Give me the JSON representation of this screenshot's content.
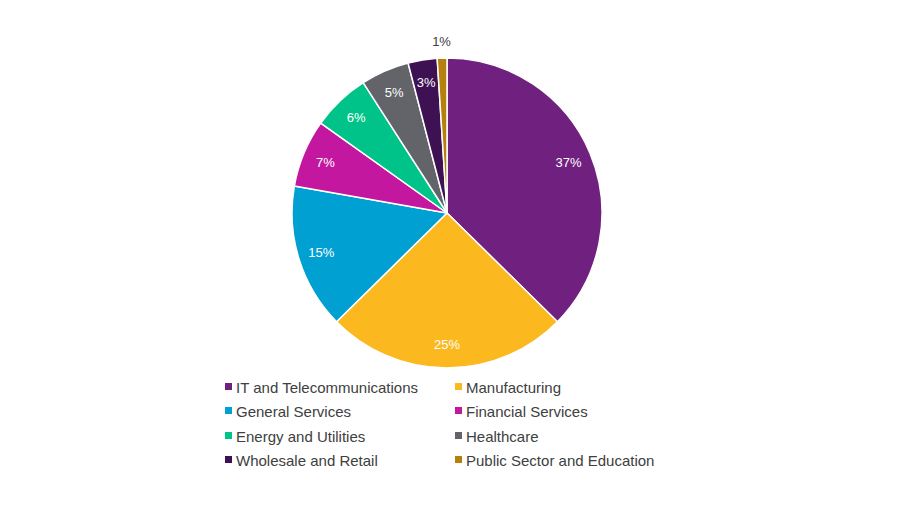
{
  "chart_data": {
    "type": "pie",
    "categories": [
      "IT and Telecommunications",
      "Manufacturing",
      "General Services",
      "Financial Services",
      "Energy and Utilities",
      "Healthcare",
      "Wholesale and Retail",
      "Public Sector and Education"
    ],
    "values": [
      37,
      25,
      15,
      7,
      6,
      5,
      3,
      1
    ],
    "value_labels": [
      "37%",
      "25%",
      "15%",
      "7%",
      "6%",
      "5%",
      "3%",
      "1%"
    ],
    "colors": [
      "#70207e",
      "#fbb81f",
      "#00a0d2",
      "#c3179f",
      "#00c389",
      "#626469",
      "#3d1152",
      "#b5800d"
    ],
    "data_labels": true,
    "legend": "bottom"
  }
}
